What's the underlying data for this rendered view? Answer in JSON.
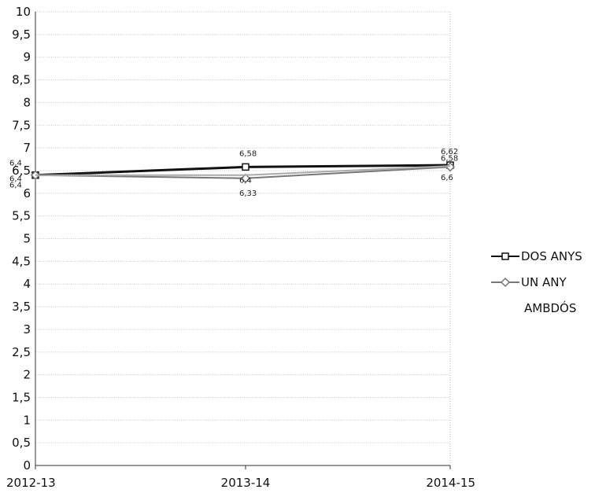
{
  "chart_data": {
    "type": "line",
    "categories": [
      "2012-13",
      "2013-14",
      "2014-15"
    ],
    "ylim": [
      0,
      10
    ],
    "yticks": [
      "0",
      "0,5",
      "1",
      "1,5",
      "2",
      "2,5",
      "3",
      "3,5",
      "4",
      "4,5",
      "5",
      "5,5",
      "6",
      "6,5",
      "7",
      "7,5",
      "8",
      "8,5",
      "9",
      "9,5",
      "10"
    ],
    "grid": true,
    "legend_position": "right",
    "series": [
      {
        "name": "DOS ANYS",
        "values": [
          6.4,
          6.58,
          6.62
        ],
        "labels": [
          "6,4",
          "6,58",
          "6,62"
        ],
        "color": "#111111",
        "marker": "square"
      },
      {
        "name": "UN ANY",
        "values": [
          6.4,
          6.33,
          6.58
        ],
        "labels": [
          "6,4",
          "6,33",
          "6,58"
        ],
        "color": "#777777",
        "marker": "diamond"
      },
      {
        "name": "AMBDÓS",
        "values": [
          6.4,
          6.4,
          6.6
        ],
        "labels": [
          "6,4",
          "6,4",
          "6,6"
        ],
        "color": "#aaaaaa",
        "marker": "none"
      }
    ]
  }
}
